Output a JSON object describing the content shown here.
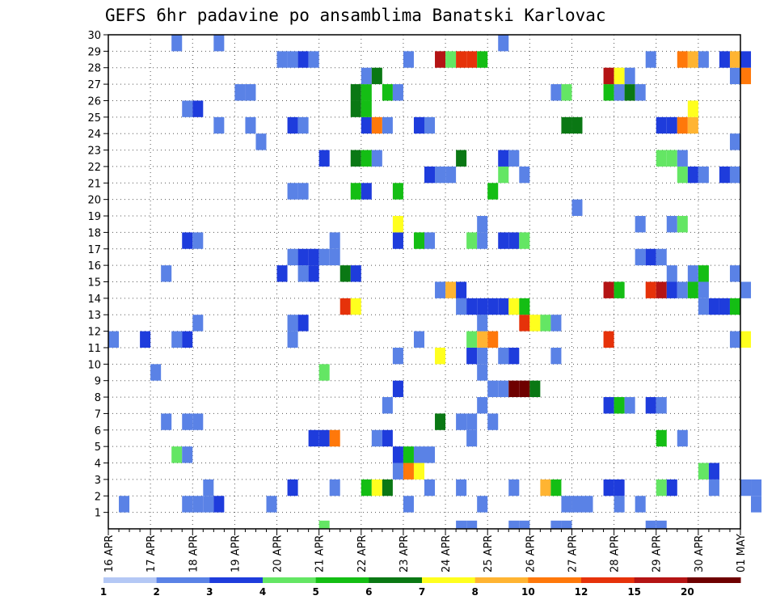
{
  "chart_data": {
    "type": "heatmap",
    "title": "GEFS 6hr padavine po ansamblima Banatski Karlovac",
    "xlabel": "",
    "ylabel": "",
    "x_tick_labels": [
      "16 APR",
      "17 APR",
      "18 APR",
      "19 APR",
      "20 APR",
      "21 APR",
      "22 APR",
      "23 APR",
      "24 APR",
      "25 APR",
      "26 APR",
      "27 APR",
      "28 APR",
      "29 APR",
      "30 APR",
      "01 MAY"
    ],
    "x_range_steps": [
      0,
      60
    ],
    "y_range": [
      0,
      30
    ],
    "y_ticks": [
      1,
      2,
      3,
      4,
      5,
      6,
      7,
      8,
      9,
      10,
      11,
      12,
      13,
      14,
      15,
      16,
      17,
      18,
      19,
      20,
      21,
      22,
      23,
      24,
      25,
      26,
      27,
      28,
      29,
      30
    ],
    "grid": "dotted",
    "cell_units": "6-hour steps (x) by ensemble member (y)",
    "legend": {
      "placement": "bottom",
      "colors": [
        "#b4c8f5",
        "#5a82e6",
        "#1e3cdc",
        "#64e664",
        "#14be14",
        "#0a7814",
        "#ffff1e",
        "#ffb432",
        "#ff780a",
        "#e6320a",
        "#b41414",
        "#6e0000"
      ],
      "labels": [
        "1",
        "2",
        "3",
        "4",
        "5",
        "6",
        "7",
        "8",
        "10",
        "12",
        "15",
        "20"
      ]
    },
    "cells": [
      [
        20,
        0,
        3
      ],
      [
        33,
        0,
        1
      ],
      [
        34,
        0,
        1
      ],
      [
        38,
        0,
        1
      ],
      [
        39,
        0,
        1
      ],
      [
        42,
        0,
        1
      ],
      [
        43,
        0,
        1
      ],
      [
        51,
        0,
        1
      ],
      [
        52,
        0,
        1
      ],
      [
        1,
        1,
        1
      ],
      [
        7,
        1,
        1
      ],
      [
        8,
        1,
        1
      ],
      [
        9,
        1,
        1
      ],
      [
        10,
        1,
        2
      ],
      [
        15,
        1,
        1
      ],
      [
        28,
        1,
        1
      ],
      [
        35,
        1,
        1
      ],
      [
        43,
        1,
        1
      ],
      [
        44,
        1,
        1
      ],
      [
        45,
        1,
        1
      ],
      [
        48,
        1,
        1
      ],
      [
        50,
        1,
        1
      ],
      [
        61,
        1,
        1
      ],
      [
        67,
        1,
        2
      ],
      [
        70,
        1,
        1
      ],
      [
        72,
        1,
        2
      ],
      [
        9,
        2,
        1
      ],
      [
        17,
        2,
        2
      ],
      [
        21,
        2,
        1
      ],
      [
        24,
        2,
        4
      ],
      [
        25,
        2,
        6
      ],
      [
        26,
        2,
        5
      ],
      [
        30,
        2,
        1
      ],
      [
        33,
        2,
        1
      ],
      [
        38,
        2,
        1
      ],
      [
        41,
        2,
        7
      ],
      [
        42,
        2,
        4
      ],
      [
        47,
        2,
        2
      ],
      [
        48,
        2,
        2
      ],
      [
        52,
        2,
        3
      ],
      [
        53,
        2,
        2
      ],
      [
        57,
        2,
        1
      ],
      [
        60,
        2,
        1
      ],
      [
        61,
        2,
        1
      ],
      [
        27,
        3,
        1
      ],
      [
        28,
        3,
        8
      ],
      [
        29,
        3,
        6
      ],
      [
        56,
        3,
        3
      ],
      [
        57,
        3,
        2
      ],
      [
        6,
        4,
        3
      ],
      [
        7,
        4,
        1
      ],
      [
        27,
        4,
        2
      ],
      [
        28,
        4,
        4
      ],
      [
        29,
        4,
        1
      ],
      [
        30,
        4,
        1
      ],
      [
        19,
        5,
        2
      ],
      [
        20,
        5,
        2
      ],
      [
        21,
        5,
        8
      ],
      [
        25,
        5,
        1
      ],
      [
        26,
        5,
        2
      ],
      [
        34,
        5,
        1
      ],
      [
        52,
        5,
        4
      ],
      [
        54,
        5,
        1
      ],
      [
        5,
        6,
        1
      ],
      [
        7,
        6,
        1
      ],
      [
        8,
        6,
        1
      ],
      [
        31,
        6,
        5
      ],
      [
        33,
        6,
        1
      ],
      [
        34,
        6,
        1
      ],
      [
        36,
        6,
        1
      ],
      [
        26,
        7,
        1
      ],
      [
        35,
        7,
        1
      ],
      [
        47,
        7,
        2
      ],
      [
        48,
        7,
        4
      ],
      [
        49,
        7,
        1
      ],
      [
        51,
        7,
        2
      ],
      [
        52,
        7,
        1
      ],
      [
        27,
        8,
        2
      ],
      [
        36,
        8,
        1
      ],
      [
        37,
        8,
        1
      ],
      [
        38,
        8,
        11
      ],
      [
        39,
        8,
        11
      ],
      [
        40,
        8,
        5
      ],
      [
        4,
        9,
        1
      ],
      [
        20,
        9,
        3
      ],
      [
        35,
        9,
        1
      ],
      [
        27,
        10,
        1
      ],
      [
        31,
        10,
        6
      ],
      [
        34,
        10,
        2
      ],
      [
        35,
        10,
        1
      ],
      [
        37,
        10,
        1
      ],
      [
        38,
        10,
        2
      ],
      [
        42,
        10,
        1
      ],
      [
        0,
        11,
        1
      ],
      [
        3,
        11,
        2
      ],
      [
        6,
        11,
        1
      ],
      [
        7,
        11,
        2
      ],
      [
        17,
        11,
        1
      ],
      [
        29,
        11,
        1
      ],
      [
        34,
        11,
        3
      ],
      [
        35,
        11,
        7
      ],
      [
        36,
        11,
        8
      ],
      [
        47,
        11,
        9
      ],
      [
        59,
        11,
        1
      ],
      [
        60,
        11,
        6
      ],
      [
        8,
        12,
        1
      ],
      [
        17,
        12,
        1
      ],
      [
        18,
        12,
        2
      ],
      [
        35,
        12,
        1
      ],
      [
        39,
        12,
        9
      ],
      [
        40,
        12,
        6
      ],
      [
        41,
        12,
        3
      ],
      [
        42,
        12,
        1
      ],
      [
        22,
        13,
        9
      ],
      [
        23,
        13,
        6
      ],
      [
        33,
        13,
        1
      ],
      [
        34,
        13,
        2
      ],
      [
        35,
        13,
        2
      ],
      [
        36,
        13,
        2
      ],
      [
        37,
        13,
        2
      ],
      [
        38,
        13,
        6
      ],
      [
        39,
        13,
        4
      ],
      [
        56,
        13,
        1
      ],
      [
        57,
        13,
        2
      ],
      [
        58,
        13,
        2
      ],
      [
        59,
        13,
        4
      ],
      [
        31,
        14,
        1
      ],
      [
        32,
        14,
        7
      ],
      [
        33,
        14,
        2
      ],
      [
        47,
        14,
        10
      ],
      [
        48,
        14,
        4
      ],
      [
        51,
        14,
        9
      ],
      [
        52,
        14,
        10
      ],
      [
        53,
        14,
        2
      ],
      [
        54,
        14,
        1
      ],
      [
        55,
        14,
        4
      ],
      [
        56,
        14,
        1
      ],
      [
        60,
        14,
        1
      ],
      [
        5,
        15,
        1
      ],
      [
        16,
        15,
        2
      ],
      [
        18,
        15,
        1
      ],
      [
        19,
        15,
        2
      ],
      [
        22,
        15,
        5
      ],
      [
        23,
        15,
        2
      ],
      [
        53,
        15,
        1
      ],
      [
        55,
        15,
        1
      ],
      [
        56,
        15,
        4
      ],
      [
        59,
        15,
        1
      ],
      [
        17,
        16,
        1
      ],
      [
        18,
        16,
        2
      ],
      [
        19,
        16,
        2
      ],
      [
        20,
        16,
        1
      ],
      [
        21,
        16,
        1
      ],
      [
        50,
        16,
        1
      ],
      [
        51,
        16,
        2
      ],
      [
        52,
        16,
        1
      ],
      [
        7,
        17,
        2
      ],
      [
        8,
        17,
        1
      ],
      [
        21,
        17,
        1
      ],
      [
        27,
        17,
        2
      ],
      [
        29,
        17,
        4
      ],
      [
        30,
        17,
        1
      ],
      [
        34,
        17,
        3
      ],
      [
        35,
        17,
        1
      ],
      [
        37,
        17,
        2
      ],
      [
        38,
        17,
        2
      ],
      [
        39,
        17,
        3
      ],
      [
        27,
        18,
        6
      ],
      [
        35,
        18,
        1
      ],
      [
        50,
        18,
        1
      ],
      [
        53,
        18,
        1
      ],
      [
        54,
        18,
        3
      ],
      [
        44,
        19,
        1
      ],
      [
        17,
        20,
        1
      ],
      [
        18,
        20,
        1
      ],
      [
        23,
        20,
        4
      ],
      [
        24,
        20,
        2
      ],
      [
        27,
        20,
        4
      ],
      [
        36,
        20,
        4
      ],
      [
        30,
        21,
        2
      ],
      [
        31,
        21,
        1
      ],
      [
        32,
        21,
        1
      ],
      [
        37,
        21,
        3
      ],
      [
        39,
        21,
        1
      ],
      [
        54,
        21,
        3
      ],
      [
        55,
        21,
        2
      ],
      [
        56,
        21,
        1
      ],
      [
        58,
        21,
        2
      ],
      [
        59,
        21,
        1
      ],
      [
        20,
        22,
        2
      ],
      [
        23,
        22,
        5
      ],
      [
        24,
        22,
        4
      ],
      [
        25,
        22,
        1
      ],
      [
        33,
        22,
        5
      ],
      [
        37,
        22,
        2
      ],
      [
        38,
        22,
        1
      ],
      [
        52,
        22,
        3
      ],
      [
        53,
        22,
        3
      ],
      [
        54,
        22,
        1
      ],
      [
        14,
        23,
        1
      ],
      [
        59,
        23,
        1
      ],
      [
        10,
        24,
        1
      ],
      [
        13,
        24,
        1
      ],
      [
        17,
        24,
        2
      ],
      [
        18,
        24,
        1
      ],
      [
        24,
        24,
        2
      ],
      [
        25,
        24,
        8
      ],
      [
        26,
        24,
        1
      ],
      [
        29,
        24,
        2
      ],
      [
        30,
        24,
        1
      ],
      [
        43,
        24,
        5
      ],
      [
        44,
        24,
        5
      ],
      [
        52,
        24,
        2
      ],
      [
        53,
        24,
        2
      ],
      [
        54,
        24,
        8
      ],
      [
        55,
        24,
        7
      ],
      [
        7,
        25,
        1
      ],
      [
        8,
        25,
        2
      ],
      [
        23,
        25,
        5
      ],
      [
        24,
        25,
        4
      ],
      [
        55,
        25,
        6
      ],
      [
        12,
        26,
        1
      ],
      [
        13,
        26,
        1
      ],
      [
        23,
        26,
        5
      ],
      [
        24,
        26,
        4
      ],
      [
        26,
        26,
        4
      ],
      [
        27,
        26,
        1
      ],
      [
        42,
        26,
        1
      ],
      [
        43,
        26,
        3
      ],
      [
        47,
        26,
        4
      ],
      [
        48,
        26,
        1
      ],
      [
        49,
        26,
        5
      ],
      [
        50,
        26,
        1
      ],
      [
        24,
        27,
        1
      ],
      [
        25,
        27,
        5
      ],
      [
        47,
        27,
        10
      ],
      [
        48,
        27,
        6
      ],
      [
        49,
        27,
        1
      ],
      [
        59,
        27,
        1
      ],
      [
        60,
        27,
        8
      ],
      [
        16,
        28,
        1
      ],
      [
        17,
        28,
        1
      ],
      [
        18,
        28,
        2
      ],
      [
        19,
        28,
        1
      ],
      [
        28,
        28,
        1
      ],
      [
        31,
        28,
        10
      ],
      [
        32,
        28,
        3
      ],
      [
        33,
        28,
        9
      ],
      [
        34,
        28,
        9
      ],
      [
        35,
        28,
        4
      ],
      [
        51,
        28,
        1
      ],
      [
        54,
        28,
        8
      ],
      [
        55,
        28,
        7
      ],
      [
        56,
        28,
        1
      ],
      [
        58,
        28,
        2
      ],
      [
        59,
        28,
        7
      ],
      [
        60,
        28,
        2
      ],
      [
        6,
        29,
        1
      ],
      [
        10,
        29,
        1
      ],
      [
        37,
        29,
        1
      ]
    ]
  }
}
